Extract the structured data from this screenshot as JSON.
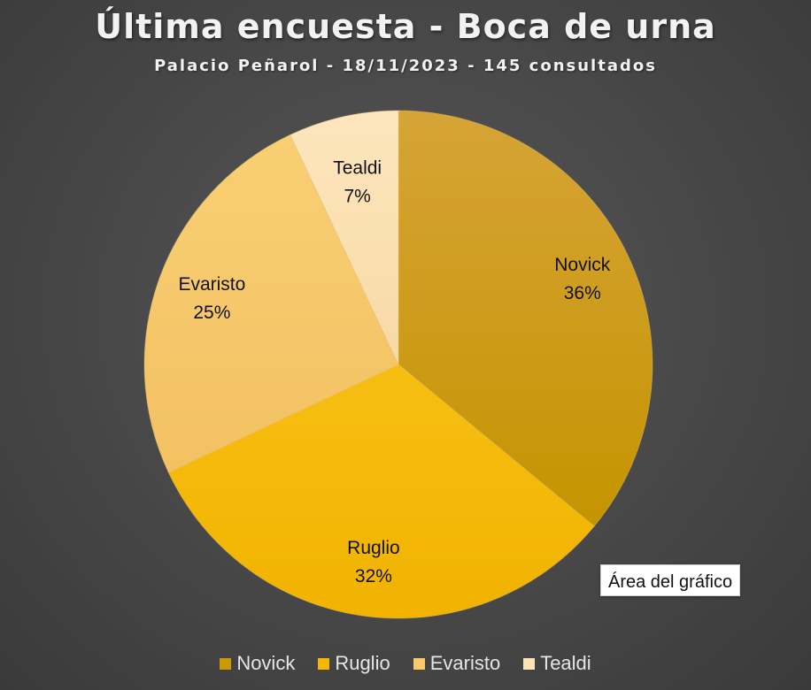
{
  "chart_data": {
    "type": "pie",
    "title": "Última encuesta - Boca de urna",
    "subtitle": "Palacio Peñarol - 18/11/2023 - 145 consultados",
    "categories": [
      "Novick",
      "Ruglio",
      "Evaristo",
      "Tealdi"
    ],
    "values": [
      36,
      32,
      25,
      7
    ],
    "labels": [
      "36%",
      "32%",
      "25%",
      "7%"
    ],
    "colors": [
      "#cc9900",
      "#f5b800",
      "#f7c96a",
      "#fde3b5"
    ],
    "legend_position": "bottom"
  },
  "tooltip": {
    "text": "Área del gráfico"
  }
}
